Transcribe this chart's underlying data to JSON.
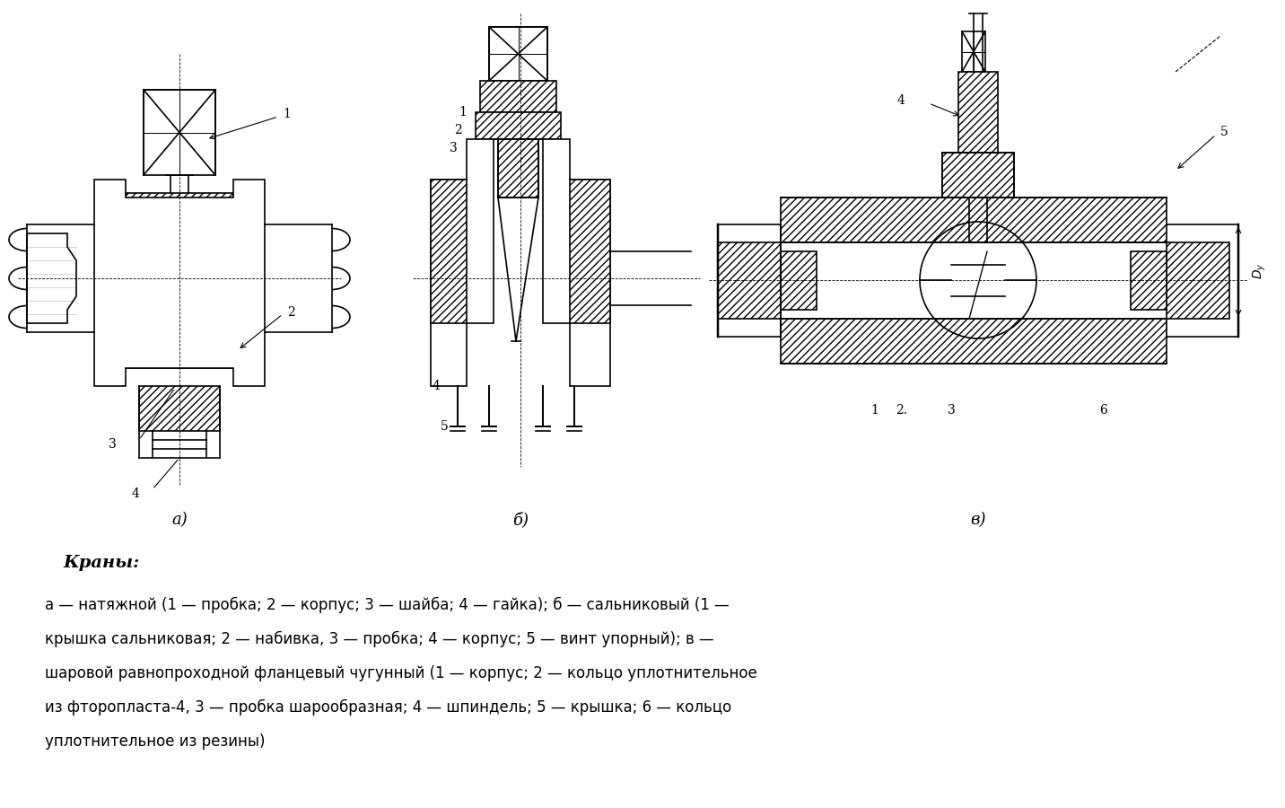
{
  "title": "Краны:",
  "caption_line1": "а — натяжной (1 — пробка; 2 — корпус; 3 — шайба; 4 — гайка); б — сальниковый (1 —",
  "caption_line2": "крышка сальниковая; 2 — набивка, 3 — пробка; 4 — корпус; 5 — винт упорный); в —",
  "caption_line3": "шаровой равнопроходной фланцевый чугунный (1 — корпус; 2 — кольцо уплотнительное",
  "caption_line4": "из фторопласта-4, 3 — пробка шарообразная; 4 — шпиндель; 5 — крышка; 6 — кольцо",
  "caption_line5": "уплотнительное из резины)",
  "label_a": "а)",
  "label_b": "б)",
  "label_v": "в)",
  "bg_color": "#ffffff",
  "drawing_color": "#000000",
  "hatch_color": "#000000"
}
